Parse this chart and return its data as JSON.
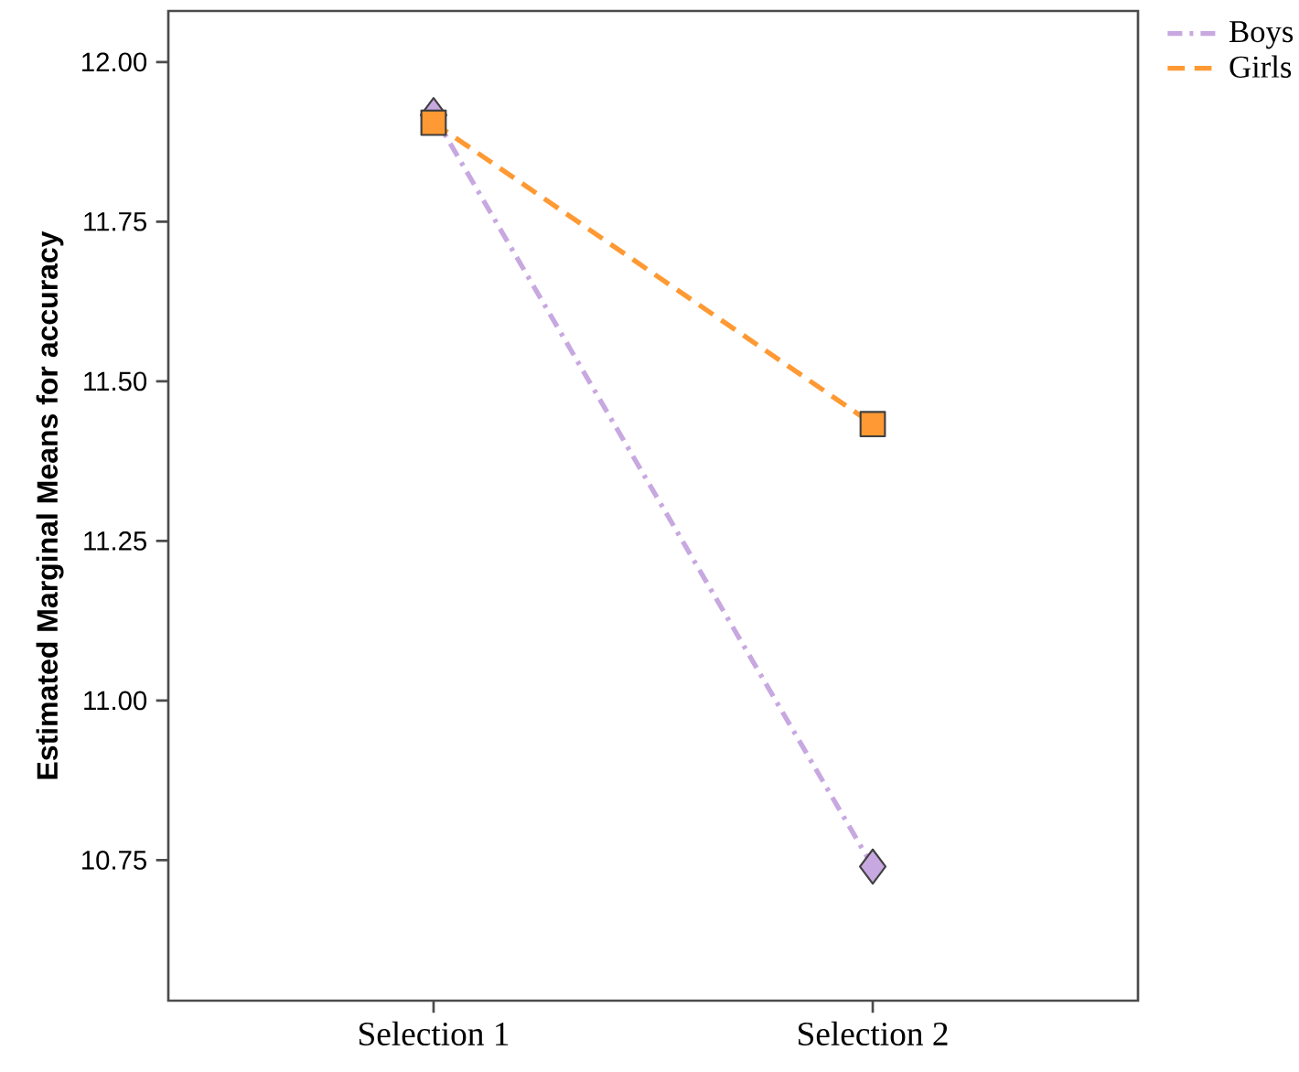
{
  "chart_data": {
    "type": "line",
    "ylabel": "Estimated Marginal Means for accuracy",
    "categories": [
      "Selection 1",
      "Selection 2"
    ],
    "series": [
      {
        "name": "Boys",
        "color": "#c8a8e0",
        "values": [
          11.917,
          10.74
        ],
        "marker": "diamond",
        "line_style": "dashdot"
      },
      {
        "name": "Girls",
        "color": "#ff9933",
        "values": [
          11.905,
          11.433
        ],
        "marker": "square",
        "line_style": "dashed"
      }
    ],
    "ylim": [
      10.53,
      12.08
    ],
    "yticks": [
      {
        "value": 10.75,
        "label": "10.75"
      },
      {
        "value": 11.0,
        "label": "11.00"
      },
      {
        "value": 11.25,
        "label": "11.25"
      },
      {
        "value": 11.5,
        "label": "11.50"
      },
      {
        "value": 11.75,
        "label": "11.75"
      },
      {
        "value": 12.0,
        "label": "12.00"
      }
    ],
    "grid": false,
    "legend": "top right"
  }
}
